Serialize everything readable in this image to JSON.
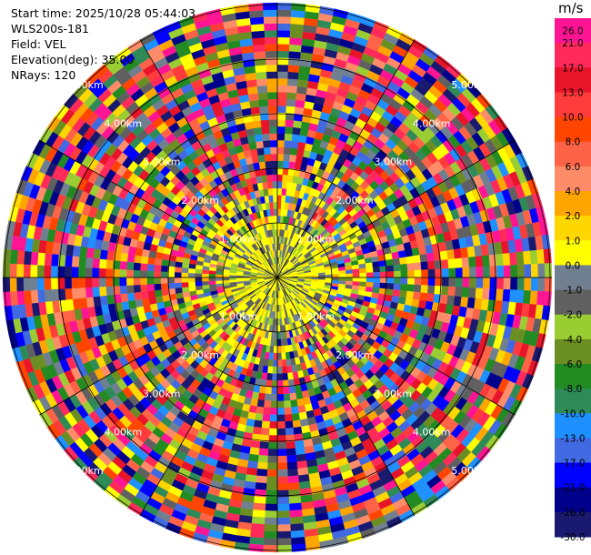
{
  "header": {
    "start_time": "Start time: 2025/10/28 05:44:03",
    "instrument": "WLS200s-181",
    "field": "Field: VEL",
    "elevation": "Elevation(deg): 35.00",
    "nrays": "NRays: 120"
  },
  "colorbar": {
    "unit": "m/s",
    "ticks": [
      "26.0",
      "21.0",
      "17.0",
      "13.0",
      "10.0",
      "8.0",
      "6.0",
      "4.0",
      "2.0",
      "1.0",
      "0.0",
      "-1.0",
      "-2.0",
      "-4.0",
      "-6.0",
      "-8.0",
      "-10.0",
      "-13.0",
      "-17.0",
      "-21.0",
      "-26.0",
      "-30.0"
    ],
    "colors": [
      "#ff1493",
      "#ff2a5a",
      "#e8142a",
      "#ff3b3b",
      "#ff4500",
      "#ff6347",
      "#ff8c69",
      "#ffa500",
      "#ffd700",
      "#ffff00",
      "#708090",
      "#606060",
      "#9acd32",
      "#6b8e23",
      "#228b22",
      "#2e8b57",
      "#1e90ff",
      "#4169e1",
      "#0000ff",
      "#00008b",
      "#191970"
    ]
  },
  "chart_data": {
    "type": "heatmap",
    "title": "",
    "field": "VEL",
    "units": "m/s",
    "elevation_deg": 35.0,
    "n_rays": 120,
    "range_rings_km": [
      "1.00km",
      "2.00km",
      "3.00km",
      "4.00km",
      "5.00km"
    ],
    "color_range": [
      -30.0,
      26.0
    ]
  }
}
